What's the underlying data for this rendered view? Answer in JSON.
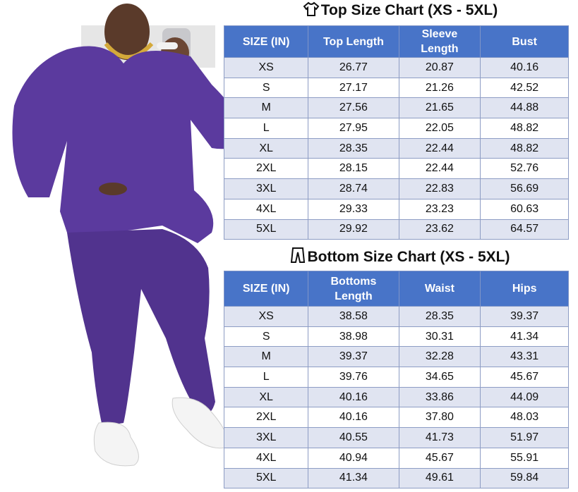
{
  "top_chart": {
    "title": "Top Size Chart (XS - 5XL)",
    "columns": [
      "SIZE (IN)",
      "Top Length",
      "Sleeve Length",
      "Bust"
    ],
    "rows": [
      [
        "XS",
        "26.77",
        "20.87",
        "40.16"
      ],
      [
        "S",
        "27.17",
        "21.26",
        "42.52"
      ],
      [
        "M",
        "27.56",
        "21.65",
        "44.88"
      ],
      [
        "L",
        "27.95",
        "22.05",
        "48.82"
      ],
      [
        "XL",
        "28.35",
        "22.44",
        "48.82"
      ],
      [
        "2XL",
        "28.15",
        "22.44",
        "52.76"
      ],
      [
        "3XL",
        "28.74",
        "22.83",
        "56.69"
      ],
      [
        "4XL",
        "29.33",
        "23.23",
        "60.63"
      ],
      [
        "5XL",
        "29.92",
        "23.62",
        "64.57"
      ]
    ]
  },
  "bottom_chart": {
    "title": "Bottom Size Chart (XS - 5XL)",
    "columns": [
      "SIZE (IN)",
      "Bottoms Length",
      "Waist",
      "Hips"
    ],
    "rows": [
      [
        "XS",
        "38.58",
        "28.35",
        "39.37"
      ],
      [
        "S",
        "38.98",
        "30.31",
        "41.34"
      ],
      [
        "M",
        "39.37",
        "32.28",
        "43.31"
      ],
      [
        "L",
        "39.76",
        "34.65",
        "45.67"
      ],
      [
        "XL",
        "40.16",
        "33.86",
        "44.09"
      ],
      [
        "2XL",
        "40.16",
        "37.80",
        "48.03"
      ],
      [
        "3XL",
        "40.55",
        "41.73",
        "51.97"
      ],
      [
        "4XL",
        "40.94",
        "45.67",
        "55.91"
      ],
      [
        "5XL",
        "41.34",
        "49.61",
        "59.84"
      ]
    ]
  }
}
